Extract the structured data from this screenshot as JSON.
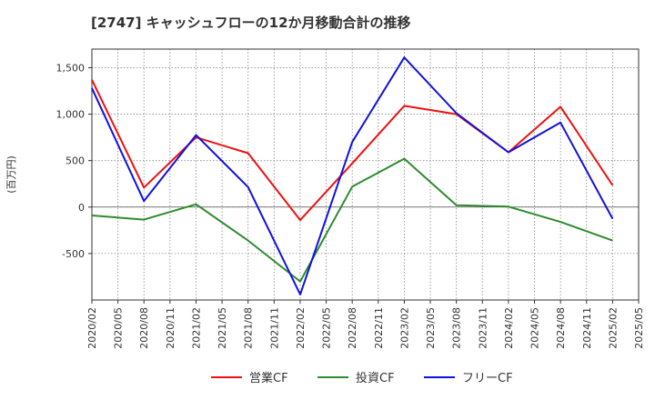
{
  "chart_data": {
    "type": "line",
    "title": "[2747]  キャッシュフローの12か月移動合計の推移",
    "ylabel": "(百万円)",
    "xlabel": "",
    "ylim": [
      -1000,
      1700
    ],
    "yticks": [
      {
        "value": 1500,
        "label": "1,500"
      },
      {
        "value": 1000,
        "label": "1,000"
      },
      {
        "value": 500,
        "label": "500"
      },
      {
        "value": 0,
        "label": "0"
      },
      {
        "value": -500,
        "label": "-500"
      }
    ],
    "categories": [
      "2020/02",
      "2020/05",
      "2020/08",
      "2020/11",
      "2021/02",
      "2021/05",
      "2021/08",
      "2021/11",
      "2022/02",
      "2022/05",
      "2022/08",
      "2022/11",
      "2023/02",
      "2023/05",
      "2023/08",
      "2023/11",
      "2024/02",
      "2024/05",
      "2024/08",
      "2024/11",
      "2025/02",
      "2025/05"
    ],
    "series": [
      {
        "name": "営業CF",
        "color": "#ee1111",
        "values": [
          1370,
          null,
          210,
          null,
          750,
          null,
          580,
          null,
          -140,
          null,
          470,
          null,
          1090,
          null,
          1000,
          null,
          590,
          null,
          1080,
          null,
          235,
          null
        ]
      },
      {
        "name": "投資CF",
        "color": "#2e8b2e",
        "values": [
          -90,
          null,
          -135,
          null,
          30,
          null,
          -360,
          null,
          -800,
          null,
          220,
          null,
          520,
          null,
          20,
          null,
          5,
          null,
          -160,
          null,
          -360,
          null
        ]
      },
      {
        "name": "フリーCF",
        "color": "#1111dd",
        "values": [
          1280,
          null,
          65,
          null,
          775,
          null,
          215,
          null,
          -940,
          null,
          700,
          null,
          1610,
          null,
          1010,
          null,
          590,
          null,
          910,
          null,
          -125,
          null
        ]
      }
    ],
    "grid": true,
    "legend_position": "bottom"
  }
}
